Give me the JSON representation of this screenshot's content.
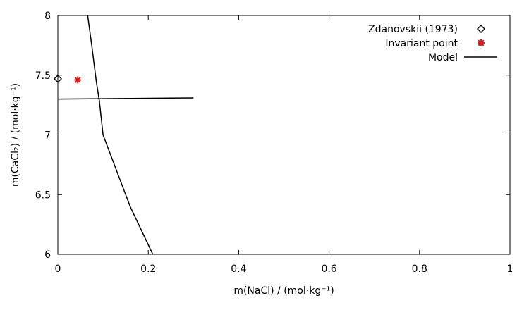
{
  "chart_data": {
    "type": "scatter",
    "xlabel": "m(NaCl) / (mol·kg⁻¹)",
    "ylabel": "m(CaCl₂) / (mol·kg⁻¹)",
    "xlim": [
      0,
      1
    ],
    "ylim": [
      6,
      8
    ],
    "x_ticks": [
      0,
      0.2,
      0.4,
      0.6,
      0.8,
      1
    ],
    "y_ticks": [
      6,
      6.5,
      7,
      7.5,
      8
    ],
    "x_tick_labels": [
      "0",
      "0.2",
      "0.4",
      "0.6",
      "0.8",
      "1"
    ],
    "y_tick_labels": [
      "6",
      "6.5",
      "7",
      "7.5",
      "8"
    ],
    "grid": false,
    "legend_position": "top-right",
    "series": [
      {
        "name": "Zdanovskii (1973)",
        "kind": "points",
        "marker": "open-diamond",
        "color": "#000000",
        "points": [
          [
            0.0,
            7.47
          ]
        ]
      },
      {
        "name": "Invariant point",
        "kind": "points",
        "marker": "star",
        "color": "#d81e1e",
        "points": [
          [
            0.044,
            7.46
          ]
        ]
      },
      {
        "name": "Model",
        "kind": "lines",
        "color": "#000000",
        "lines": [
          [
            [
              0.066,
              8.0
            ],
            [
              0.075,
              7.75
            ],
            [
              0.085,
              7.45
            ],
            [
              0.092,
              7.28
            ],
            [
              0.1,
              7.0
            ],
            [
              0.12,
              6.8
            ],
            [
              0.16,
              6.4
            ],
            [
              0.21,
              6.0
            ]
          ],
          [
            [
              0.0,
              7.3
            ],
            [
              0.3,
              7.31
            ]
          ]
        ]
      }
    ]
  }
}
